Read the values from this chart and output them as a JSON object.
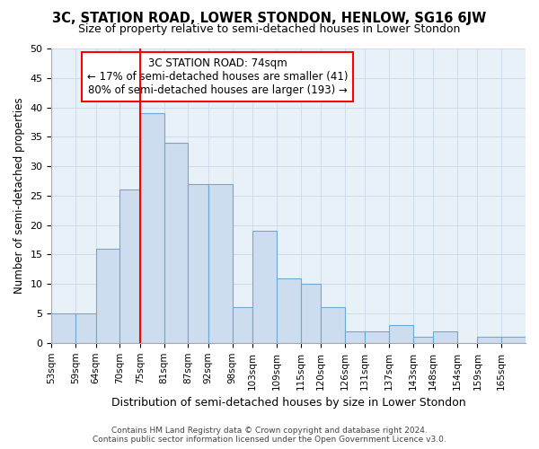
{
  "title": "3C, STATION ROAD, LOWER STONDON, HENLOW, SG16 6JW",
  "subtitle": "Size of property relative to semi-detached houses in Lower Stondon",
  "xlabel": "Distribution of semi-detached houses by size in Lower Stondon",
  "ylabel": "Number of semi-detached properties",
  "annotation_line1": "3C STATION ROAD: 74sqm",
  "annotation_line2": "← 17% of semi-detached houses are smaller (41)",
  "annotation_line3": "80% of semi-detached houses are larger (193) →",
  "bar_left_edges": [
    53,
    59,
    64,
    70,
    75,
    81,
    87,
    92,
    98,
    103,
    109,
    115,
    120,
    126,
    131,
    137,
    143,
    148,
    154,
    159,
    165
  ],
  "bar_widths": [
    6,
    5,
    6,
    5,
    6,
    6,
    5,
    6,
    5,
    6,
    6,
    5,
    6,
    5,
    6,
    6,
    5,
    6,
    5,
    6,
    6
  ],
  "bar_heights": [
    5,
    5,
    16,
    26,
    39,
    34,
    27,
    27,
    6,
    19,
    11,
    10,
    6,
    2,
    2,
    3,
    1,
    2,
    0,
    1,
    1
  ],
  "tick_labels": [
    "53sqm",
    "59sqm",
    "64sqm",
    "70sqm",
    "75sqm",
    "81sqm",
    "87sqm",
    "92sqm",
    "98sqm",
    "103sqm",
    "109sqm",
    "115sqm",
    "120sqm",
    "126sqm",
    "131sqm",
    "137sqm",
    "143sqm",
    "148sqm",
    "154sqm",
    "159sqm",
    "165sqm"
  ],
  "bar_color": "#cddcee",
  "bar_edge_color": "#6aaad4",
  "red_line_x": 75,
  "annotation_box_color": "white",
  "annotation_box_edge": "red",
  "grid_color": "#c8d8e8",
  "background_color": "#ffffff",
  "plot_bg_color": "#e8f0f8",
  "ylim": [
    0,
    50
  ],
  "yticks": [
    0,
    5,
    10,
    15,
    20,
    25,
    30,
    35,
    40,
    45,
    50
  ],
  "footer_line1": "Contains HM Land Registry data © Crown copyright and database right 2024.",
  "footer_line2": "Contains public sector information licensed under the Open Government Licence v3.0."
}
